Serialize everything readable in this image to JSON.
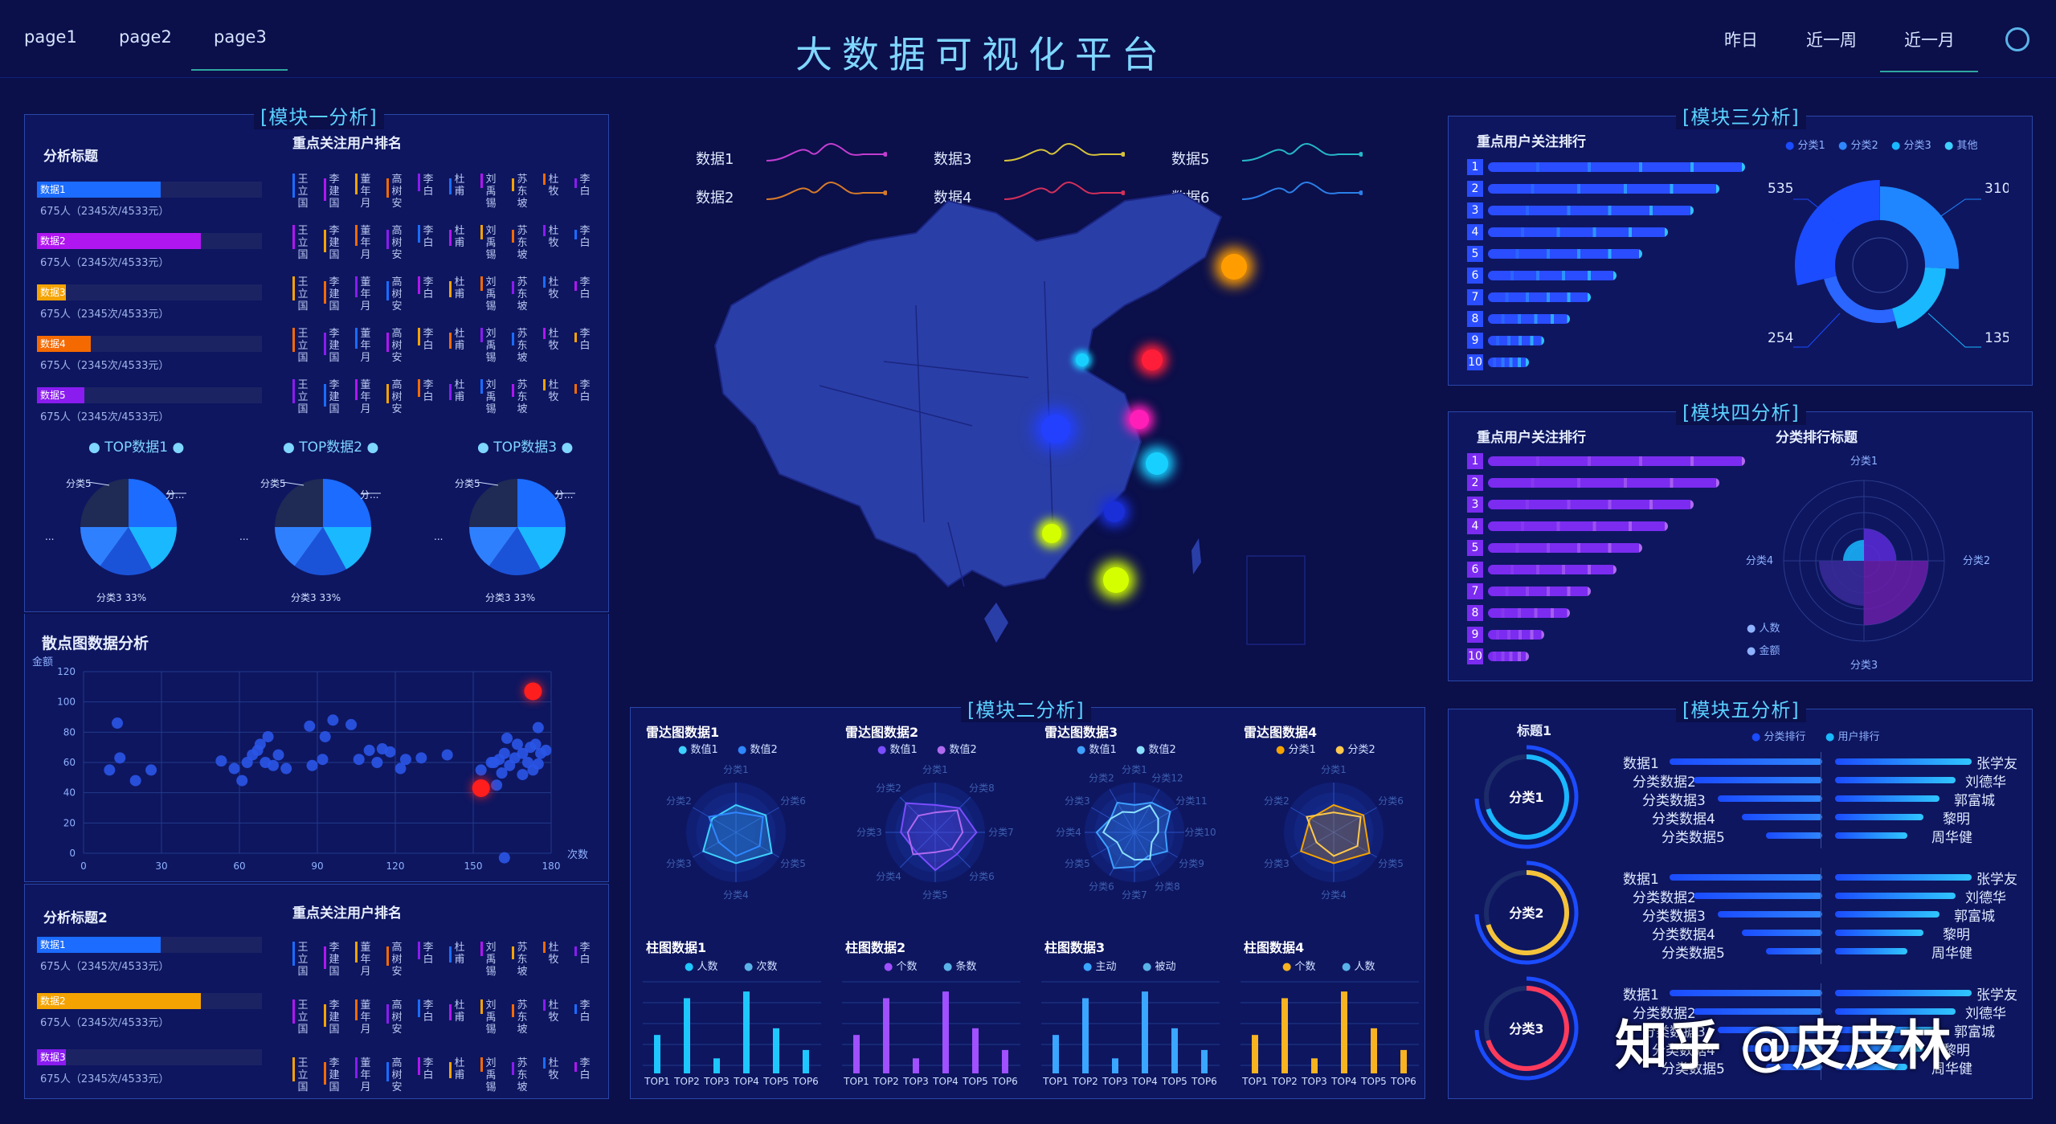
{
  "nav": {
    "left": [
      "page1",
      "page2",
      "page3"
    ],
    "title": "大数据可视化平台",
    "right": [
      "昨日",
      "近一周",
      "近一月"
    ],
    "settings_icon": "gear-icon"
  },
  "module1": {
    "title": "模块一分析",
    "analysis_title": "分析标题",
    "rank_title": "重点关注用户排名",
    "bars": [
      {
        "label": "数据1",
        "sub": "675人（2345次/4533元）",
        "fill": 0.55,
        "color": "#1b6cff"
      },
      {
        "label": "数据2",
        "sub": "675人（2345次/4533元）",
        "fill": 0.73,
        "color": "#b016f0"
      },
      {
        "label": "数据3",
        "sub": "675人（2345次/4533元）",
        "fill": 0.13,
        "color": "#f5a300"
      },
      {
        "label": "数据4",
        "sub": "675人（2345次/4533元）",
        "fill": 0.24,
        "color": "#f56a00"
      },
      {
        "label": "数据5",
        "sub": "675人（2345次/4533元）",
        "fill": 0.21,
        "color": "#8a1cf0"
      }
    ],
    "names": [
      "王立国",
      "李建国",
      "董年月",
      "高树安",
      "李白",
      "杜甫",
      "刘禹锡",
      "苏东坡",
      "杜牧",
      "李白"
    ],
    "tops": [
      "TOP数据1",
      "TOP数据2",
      "TOP数据3"
    ],
    "pie_labels": {
      "tl": "分类5",
      "tr": "分...",
      "bottom": "分类3 33%",
      "left": "..."
    },
    "scatter_title": "散点图数据分析",
    "scatter_ylabel": "金额",
    "scatter_xlabel": "次数",
    "analysis_title2": "分析标题2",
    "rank_title2": "重点关注用户排名",
    "bars2": [
      {
        "label": "数据1",
        "sub": "675人（2345次/4533元）",
        "fill": 0.55,
        "color": "#1b6cff"
      },
      {
        "label": "数据2",
        "sub": "675人（2345次/4533元）",
        "fill": 0.73,
        "color": "#f5a300"
      },
      {
        "label": "数据3",
        "sub": "675人（2345次/4533元）",
        "fill": 0.13,
        "color": "#8a1cf0"
      }
    ]
  },
  "chart_data": [
    {
      "type": "scatter",
      "title": "散点图数据分析",
      "ylabel": "金额",
      "xlabel": "次数",
      "xlim": [
        0,
        180
      ],
      "ylim": [
        0,
        120
      ],
      "xticks": [
        0,
        30,
        60,
        90,
        120,
        150,
        180
      ],
      "yticks": [
        0,
        20,
        40,
        60,
        80,
        100,
        120
      ],
      "points": [
        [
          13,
          86
        ],
        [
          10,
          55
        ],
        [
          14,
          63
        ],
        [
          20,
          48
        ],
        [
          26,
          55
        ],
        [
          53,
          61
        ],
        [
          58,
          56
        ],
        [
          61,
          48
        ],
        [
          63,
          60
        ],
        [
          65,
          65
        ],
        [
          67,
          68
        ],
        [
          68,
          72
        ],
        [
          71,
          77
        ],
        [
          70,
          60
        ],
        [
          73,
          58
        ],
        [
          75,
          65
        ],
        [
          78,
          56
        ],
        [
          88,
          58
        ],
        [
          92,
          62
        ],
        [
          93,
          77
        ],
        [
          87,
          84
        ],
        [
          96,
          88
        ],
        [
          103,
          85
        ],
        [
          106,
          62
        ],
        [
          110,
          68
        ],
        [
          113,
          60
        ],
        [
          115,
          69
        ],
        [
          118,
          67
        ],
        [
          124,
          62
        ],
        [
          122,
          56
        ],
        [
          130,
          63
        ],
        [
          140,
          65
        ],
        [
          153,
          55
        ],
        [
          157,
          60
        ],
        [
          160,
          62
        ],
        [
          164,
          58
        ],
        [
          166,
          63
        ],
        [
          169,
          66
        ],
        [
          172,
          70
        ],
        [
          174,
          72
        ],
        [
          176,
          66
        ],
        [
          175,
          83
        ],
        [
          178,
          68
        ],
        [
          163,
          76
        ],
        [
          158,
          60
        ],
        [
          161,
          53
        ],
        [
          169,
          52
        ],
        [
          175,
          59
        ],
        [
          159,
          45
        ],
        [
          162,
          66
        ],
        [
          167,
          72
        ],
        [
          171,
          60
        ],
        [
          173,
          55
        ],
        [
          162,
          -3
        ]
      ],
      "highlight": [
        [
          173,
          107
        ],
        [
          153,
          43
        ]
      ]
    },
    {
      "type": "bar",
      "title": "柱图数据1",
      "categories": [
        "TOP1",
        "TOP2",
        "TOP3",
        "TOP4",
        "TOP5",
        "TOP6"
      ],
      "series": [
        {
          "name": "人数",
          "values": [
            23,
            45,
            9,
            49,
            27,
            14
          ]
        },
        {
          "name": "次数",
          "values": [
            0,
            0,
            0,
            0,
            0,
            0
          ]
        }
      ]
    },
    {
      "type": "bar",
      "title": "柱图数据2",
      "categories": [
        "TOP1",
        "TOP2",
        "TOP3",
        "TOP4",
        "TOP5",
        "TOP6"
      ],
      "series": [
        {
          "name": "个数",
          "values": [
            23,
            45,
            9,
            49,
            27,
            14
          ]
        },
        {
          "name": "条数",
          "values": [
            0,
            0,
            0,
            0,
            0,
            0
          ]
        }
      ]
    },
    {
      "type": "bar",
      "title": "柱图数据3",
      "categories": [
        "TOP1",
        "TOP2",
        "TOP3",
        "TOP4",
        "TOP5",
        "TOP6"
      ],
      "series": [
        {
          "name": "主动",
          "values": [
            23,
            45,
            9,
            49,
            27,
            14
          ]
        },
        {
          "name": "被动",
          "values": [
            0,
            0,
            0,
            0,
            0,
            0
          ]
        }
      ]
    },
    {
      "type": "bar",
      "title": "柱图数据4",
      "categories": [
        "TOP1",
        "TOP2",
        "TOP3",
        "TOP4",
        "TOP5",
        "TOP6"
      ],
      "series": [
        {
          "name": "个数",
          "values": [
            23,
            45,
            9,
            49,
            27,
            14
          ]
        },
        {
          "name": "人数",
          "values": [
            0,
            0,
            0,
            0,
            0,
            0
          ]
        }
      ]
    }
  ],
  "center": {
    "legend": [
      "数据1",
      "数据3",
      "数据5",
      "数据2",
      "数据4",
      "数据6"
    ],
    "module2_title": "模块二分析",
    "radars": [
      {
        "title": "雷达图数据1",
        "legend": [
          "数值1",
          "数值2"
        ],
        "axes": [
          "分类1",
          "分类6",
          "分类5",
          "分类4",
          "分类3",
          "分类2"
        ],
        "colors": [
          "#3ed0ff",
          "#2f86ff"
        ]
      },
      {
        "title": "雷达图数据2",
        "legend": [
          "数值1",
          "数值2"
        ],
        "axes": [
          "分类1",
          "分类8",
          "分类7",
          "分类6",
          "分类5",
          "分类4",
          "分类3",
          "分类2"
        ],
        "colors": [
          "#7a4dff",
          "#b06af0"
        ]
      },
      {
        "title": "雷达图数据3",
        "legend": [
          "数值1",
          "数值2"
        ],
        "axes": [
          "分类1",
          "分类12",
          "分类11",
          "分类10",
          "分类9",
          "分类8",
          "分类7",
          "分类6",
          "分类5",
          "分类4",
          "分类3",
          "分类2"
        ],
        "colors": [
          "#3ea0ff",
          "#8be0ff"
        ]
      },
      {
        "title": "雷达图数据4",
        "legend": [
          "分类1",
          "分类2"
        ],
        "axes": [
          "分类1",
          "分类6",
          "分类5",
          "分类4",
          "分类3",
          "分类2"
        ],
        "colors": [
          "#f5a300",
          "#ffc94d"
        ]
      }
    ],
    "bar_titles": [
      "柱图数据1",
      "柱图数据2",
      "柱图数据3",
      "柱图数据4"
    ],
    "bar_legends": [
      [
        "人数",
        "次数"
      ],
      [
        "个数",
        "条数"
      ],
      [
        "主动",
        "被动"
      ],
      [
        "个数",
        "人数"
      ]
    ],
    "bar_colors": [
      "#1ec8ff",
      "#a050ff",
      "#3aa6ff",
      "#f7b320"
    ]
  },
  "module3": {
    "title": "模块三分析",
    "rank_title": "重点用户关注排行",
    "legend": [
      "分类1",
      "分类2",
      "分类3",
      "其他"
    ],
    "ranks": [
      "1",
      "2",
      "3",
      "4",
      "5",
      "6",
      "7",
      "8",
      "9",
      "10"
    ],
    "rank_values": [
      100,
      90,
      80,
      70,
      60,
      50,
      40,
      32,
      22,
      16
    ],
    "ring_labels": [
      "535",
      "310",
      "254",
      "135"
    ]
  },
  "module4": {
    "title": "模块四分析",
    "rank_title": "重点用户关注排行",
    "rank_title2": "分类排行标题",
    "ranks": [
      "1",
      "2",
      "3",
      "4",
      "5",
      "6",
      "7",
      "8",
      "9",
      "10"
    ],
    "rank_values": [
      100,
      90,
      80,
      70,
      60,
      50,
      40,
      32,
      22,
      16
    ],
    "polar_labels": [
      "分类1",
      "分类2",
      "分类3",
      "分类4"
    ],
    "legend": [
      "人数",
      "金额"
    ]
  },
  "module5": {
    "title": "模块五分析",
    "sub_title": "标题1",
    "legend": [
      "分类排行",
      "用户排行"
    ],
    "rings": [
      "分类1",
      "分类2",
      "分类3"
    ],
    "left_items": [
      "数据1",
      "分类数据2",
      "分类数据3",
      "分类数据4",
      "分类数据5"
    ],
    "right_items": [
      "张学友",
      "刘德华",
      "郭富城",
      "黎明",
      "周华健"
    ]
  },
  "watermark": "知乎 @皮皮林"
}
